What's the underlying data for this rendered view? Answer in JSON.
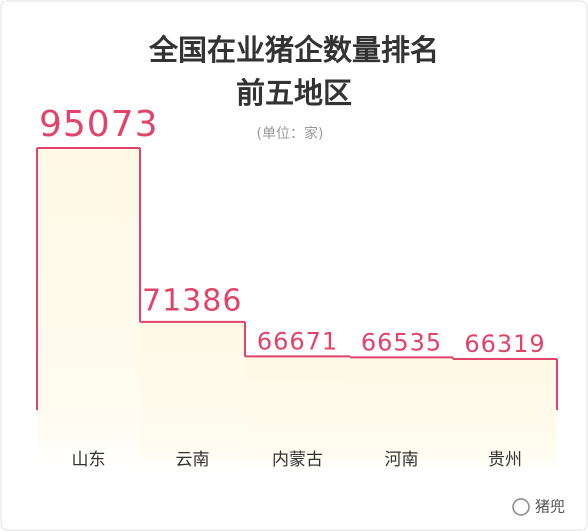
{
  "chart_data": {
    "type": "bar",
    "title": "全国在业猪企数量排名",
    "subtitle": "前五地区",
    "unit_note": "(单位：家)",
    "categories": [
      "山东",
      "云南",
      "内蒙古",
      "河南",
      "贵州"
    ],
    "values": [
      95073,
      71386,
      66671,
      66535,
      66319
    ],
    "color": "#e0446a"
  },
  "watermark": "猪兜"
}
